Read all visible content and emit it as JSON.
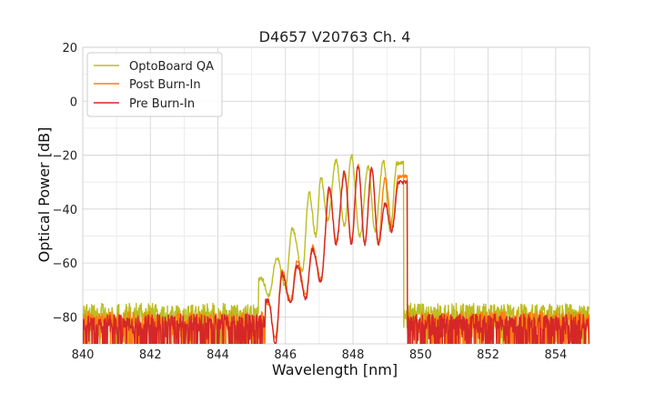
{
  "chart_data": {
    "type": "line",
    "title": "D4657 V20763 Ch. 4",
    "xlabel": "Wavelength [nm]",
    "ylabel": "Optical Power [dB]",
    "xlim": [
      840,
      855
    ],
    "ylim": [
      -90,
      20
    ],
    "x_ticks": [
      840,
      842,
      844,
      846,
      848,
      850,
      852,
      854
    ],
    "y_ticks": [
      20,
      0,
      -20,
      -40,
      -60,
      -80
    ],
    "grid": true,
    "legend_position": "top-left",
    "series": [
      {
        "name": "OptoBoard QA",
        "color": "#bcbd22",
        "peaks": [
          [
            845.3,
            -66
          ],
          [
            845.75,
            -58
          ],
          [
            846.2,
            -47
          ],
          [
            846.7,
            -34
          ],
          [
            847.05,
            -28
          ],
          [
            847.5,
            -22
          ],
          [
            847.95,
            -20
          ],
          [
            848.45,
            -24
          ],
          [
            848.9,
            -22
          ],
          [
            849.3,
            -23
          ]
        ],
        "dips": [
          [
            845.5,
            -72
          ],
          [
            846.0,
            -69
          ],
          [
            846.5,
            -63
          ],
          [
            846.9,
            -50
          ],
          [
            847.25,
            -44
          ],
          [
            847.75,
            -46
          ],
          [
            848.2,
            -50
          ],
          [
            848.65,
            -48
          ],
          [
            849.1,
            -48
          ]
        ],
        "noise_floor": -75,
        "band": [
          845.2,
          849.5
        ]
      },
      {
        "name": "Post Burn-In",
        "color": "#ff7f0e",
        "peaks": [
          [
            845.5,
            -75
          ],
          [
            845.9,
            -63
          ],
          [
            846.35,
            -59
          ],
          [
            846.8,
            -54
          ],
          [
            847.3,
            -33
          ],
          [
            847.75,
            -27
          ],
          [
            848.15,
            -24
          ],
          [
            848.55,
            -25
          ],
          [
            848.95,
            -28
          ],
          [
            849.35,
            -28
          ]
        ],
        "dips": [
          [
            845.7,
            -88
          ],
          [
            846.15,
            -74
          ],
          [
            846.6,
            -72
          ],
          [
            847.05,
            -66
          ],
          [
            847.5,
            -52
          ],
          [
            847.95,
            -52
          ],
          [
            848.35,
            -52
          ],
          [
            848.75,
            -52
          ],
          [
            849.15,
            -47
          ]
        ],
        "noise_floor": -78,
        "band": [
          845.4,
          849.6
        ]
      },
      {
        "name": "Pre Burn-In",
        "color": "#d62728",
        "peaks": [
          [
            845.5,
            -74
          ],
          [
            845.9,
            -64
          ],
          [
            846.35,
            -61
          ],
          [
            846.8,
            -55
          ],
          [
            847.3,
            -32
          ],
          [
            847.75,
            -26
          ],
          [
            848.15,
            -24
          ],
          [
            848.55,
            -25
          ],
          [
            848.95,
            -38
          ],
          [
            849.35,
            -30
          ]
        ],
        "dips": [
          [
            845.7,
            -90
          ],
          [
            846.15,
            -75
          ],
          [
            846.6,
            -73
          ],
          [
            847.05,
            -67
          ],
          [
            847.5,
            -53
          ],
          [
            847.95,
            -53
          ],
          [
            848.35,
            -53
          ],
          [
            848.75,
            -53
          ],
          [
            849.15,
            -48
          ]
        ],
        "noise_floor": -79,
        "band": [
          845.4,
          849.6
        ]
      }
    ]
  }
}
